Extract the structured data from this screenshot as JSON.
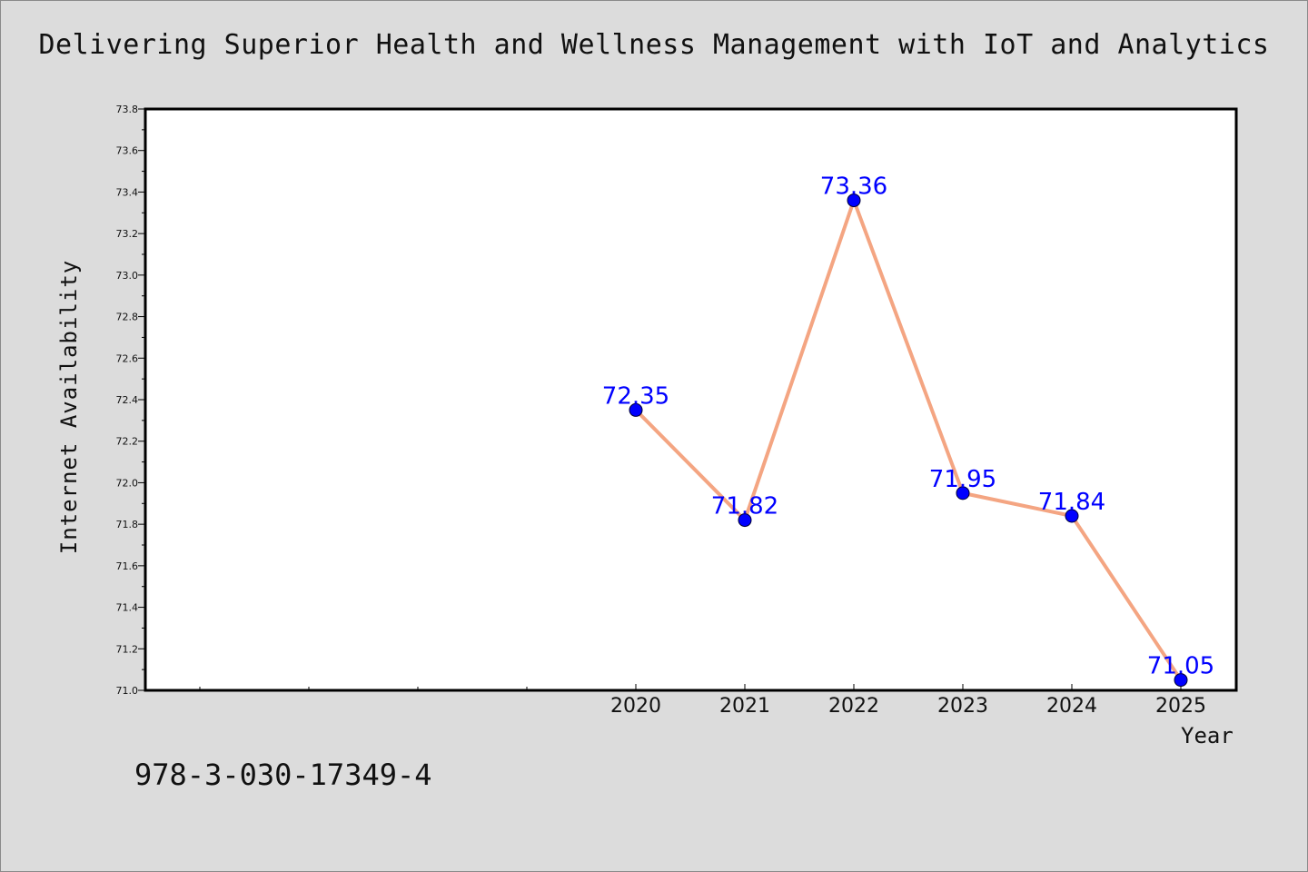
{
  "chart_data": {
    "type": "line",
    "title": "Delivering Superior Health and Wellness Management with IoT and Analytics",
    "xlabel": "Year",
    "ylabel": "Internet Availability",
    "x": [
      "2020",
      "2021",
      "2022",
      "2023",
      "2024",
      "2025"
    ],
    "y": [
      72.35,
      71.82,
      73.36,
      71.95,
      71.84,
      71.05
    ],
    "data_labels": [
      "72.35",
      "71.82",
      "73.36",
      "71.95",
      "71.84",
      "71.05"
    ],
    "ylim": [
      71.0,
      73.8
    ],
    "yticks": [
      "71.0",
      "71.2",
      "71.4",
      "71.6",
      "71.8",
      "72.0",
      "72.2",
      "72.4",
      "72.6",
      "72.8",
      "73.0",
      "73.2",
      "73.4",
      "73.6",
      "73.8"
    ],
    "grid": false,
    "colors": {
      "line": "#f4a582",
      "marker": "#0000ff",
      "data_label": "#0000ff",
      "background": "#dcdcdc",
      "plot_background": "#ffffff"
    }
  },
  "footer_text": "978-3-030-17349-4"
}
